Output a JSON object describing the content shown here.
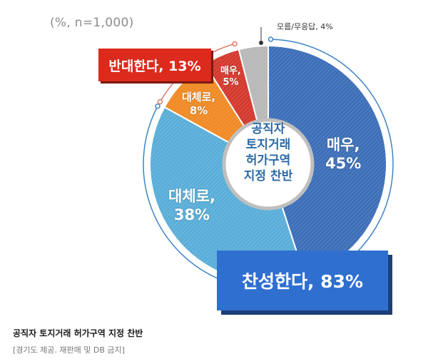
{
  "unit_note": "(%, n=1,000)",
  "center_title_lines": [
    "공직자",
    "토지거래",
    "허가구역",
    "지정 찬반"
  ],
  "chart_data": {
    "type": "pie",
    "title": "",
    "slices": [
      {
        "label": "매우,",
        "value": 45,
        "value_text": "45%",
        "color": "#3d6fb8",
        "group": "찬성"
      },
      {
        "label": "대체로,",
        "value": 38,
        "value_text": "38%",
        "color": "#5aaed9",
        "group": "찬성"
      },
      {
        "label": "대체로,",
        "value": 8,
        "value_text": "8%",
        "color": "#f08a25",
        "group": "반대"
      },
      {
        "label": "매우,",
        "value": 5,
        "value_text": "5%",
        "color": "#d4392e",
        "group": "반대"
      },
      {
        "label": "모름/무응답",
        "value": 4,
        "value_text": "4%",
        "color": "#b8b8b8",
        "group": "모름"
      }
    ],
    "groups": {
      "agree": {
        "text": "찬성한다, 83%",
        "value": 83,
        "color": "#2f6fd0"
      },
      "oppose": {
        "text": "반대한다, 13%",
        "value": 13,
        "color": "#dc2a1c"
      }
    },
    "unknown_label": "모름/무응답, 4%"
  },
  "caption": "공직자 토지거래 허가구역 지정 찬반",
  "credit": "[경기도 제공. 재판매 및 DB 금지]"
}
